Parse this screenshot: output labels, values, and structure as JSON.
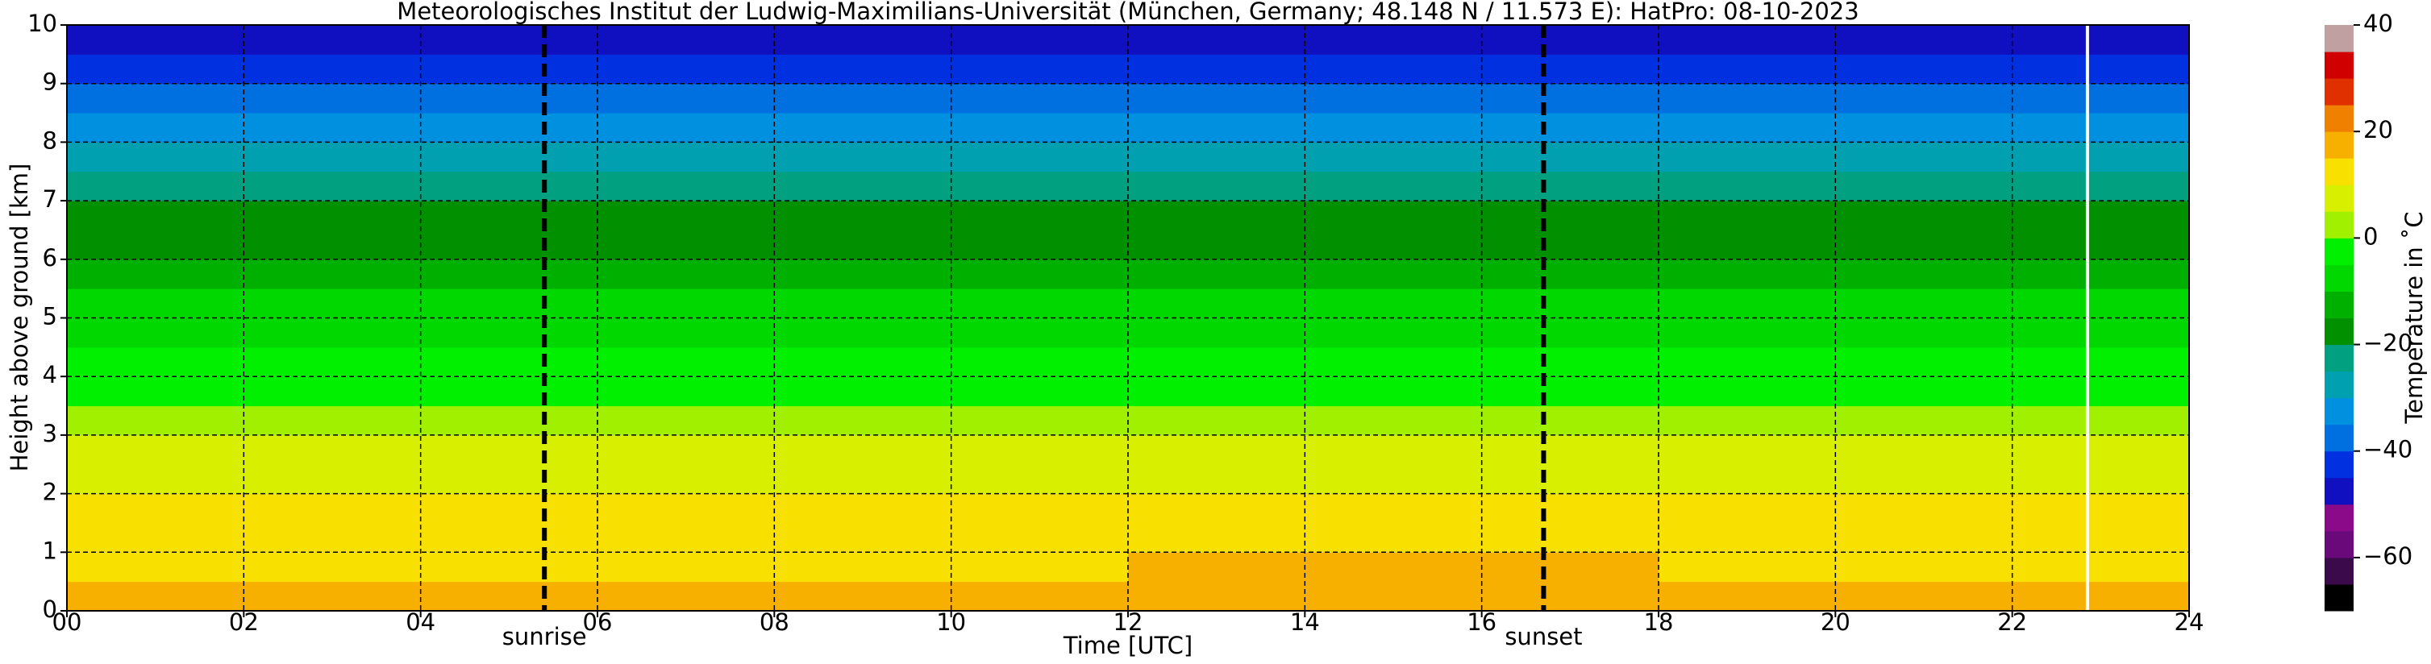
{
  "chart_data": {
    "type": "heatmap",
    "title": "Meteorologisches Institut der Ludwig-Maximilians-Universität (München, Germany; 48.148 N / 11.573 E):    HatPro: 08-10-2023",
    "x_label": "Time [UTC]",
    "y_label": "Height above ground [km]",
    "colorbar_label": "Temperature in ˚C",
    "xbins": [
      0,
      6,
      12,
      18,
      24
    ],
    "ybins": [
      0,
      0.5,
      1,
      1.5,
      2,
      2.5,
      3,
      3.5,
      4,
      4.5,
      5,
      5.5,
      6,
      6.5,
      7,
      7.5,
      8,
      8.5,
      9,
      9.5,
      10
    ],
    "values": [
      [
        17,
        18,
        17,
        17
      ],
      [
        13,
        14,
        15,
        14
      ],
      [
        11,
        11,
        12,
        11
      ],
      [
        10,
        10,
        10,
        10
      ],
      [
        8,
        8,
        8,
        8
      ],
      [
        6,
        6,
        6,
        6
      ],
      [
        3,
        3,
        3,
        3
      ],
      [
        -1,
        -1,
        -1,
        -1
      ],
      [
        -4,
        -4,
        -4,
        -4
      ],
      [
        -7,
        -7,
        -7,
        -7
      ],
      [
        -10,
        -10,
        -10,
        -10
      ],
      [
        -13,
        -13,
        -13,
        -13
      ],
      [
        -16,
        -16,
        -16,
        -16
      ],
      [
        -19,
        -19,
        -19,
        -19
      ],
      [
        -24,
        -24,
        -24,
        -24
      ],
      [
        -28,
        -28,
        -28,
        -28
      ],
      [
        -33,
        -33,
        -33,
        -33
      ],
      [
        -37,
        -37,
        -37,
        -37
      ],
      [
        -41,
        -41,
        -41,
        -41
      ],
      [
        -46,
        -46,
        -46,
        -46
      ]
    ],
    "xlim": [
      0,
      24
    ],
    "ylim": [
      0,
      10
    ],
    "zlim": [
      -70,
      40
    ],
    "xticks": [
      {
        "value": 0,
        "label": "00"
      },
      {
        "value": 2,
        "label": "02"
      },
      {
        "value": 4,
        "label": "04"
      },
      {
        "value": 6,
        "label": "06"
      },
      {
        "value": 8,
        "label": "08"
      },
      10,
      12,
      14,
      16,
      18,
      20,
      22,
      24
    ],
    "yticks": [
      0,
      1,
      2,
      3,
      4,
      5,
      6,
      7,
      8,
      9,
      10
    ],
    "zticks": [
      {
        "value": -60,
        "label": "−60"
      },
      {
        "value": -40,
        "label": "−40"
      },
      {
        "value": -20,
        "label": "−20"
      },
      0,
      20,
      40
    ],
    "colormap": [
      "#000000",
      "#3a0a4a",
      "#6a0a7a",
      "#8a0a8a",
      "#1010c0",
      "#0030e0",
      "#0070e0",
      "#0090e0",
      "#00a0b0",
      "#00a080",
      "#009000",
      "#00b000",
      "#00d800",
      "#00f000",
      "#a0f000",
      "#d8f000",
      "#f8e000",
      "#f8b000",
      "#f08000",
      "#e03000",
      "#d00000",
      "#c0a0a0"
    ],
    "grid": true,
    "events": [
      {
        "x": 5.4,
        "label": "sunrise"
      },
      {
        "x": 16.7,
        "label": "sunset"
      }
    ],
    "blank_x": [
      22.85
    ]
  }
}
